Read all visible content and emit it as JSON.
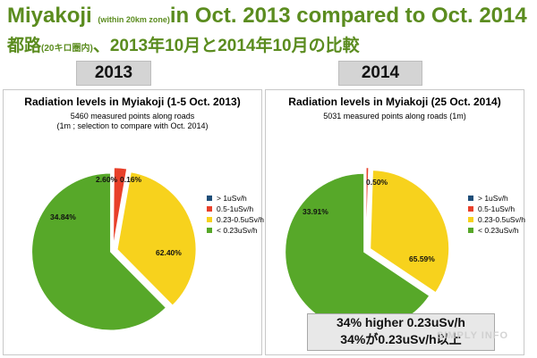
{
  "header": {
    "title_en_main": "Miyakoji",
    "title_en_small": "(within 20km zone)",
    "title_en_rest": "in Oct. 2013 compared to Oct. 2014",
    "title_jp_a": "都路",
    "title_jp_small": "(20キロ圏内)",
    "title_jp_b": "、2013年10月と2014年10月の比較"
  },
  "year_labels": [
    "2013",
    "2014"
  ],
  "colors": {
    "over1": "#1f4e79",
    "red": "#e8402a",
    "yellow": "#f7d21d",
    "green": "#57a829",
    "title_green": "#5b8c1f"
  },
  "chart_data": [
    {
      "type": "pie",
      "title": "Radiation levels in Myiakoji (1-5 Oct. 2013)",
      "subtitle_lines": [
        "5460 measured points along roads",
        "(1m ; selection to compare with Oct. 2014)"
      ],
      "categories": [
        "> 1uSv/h",
        "0.5-1uSv/h",
        "0.23-0.5uSv/h",
        "< 0.23uSv/h"
      ],
      "values": [
        0.16,
        2.6,
        34.84,
        62.4
      ],
      "labels": [
        "0.16%",
        "2.60%",
        "34.84%",
        "62.40%"
      ],
      "legend_position": "right"
    },
    {
      "type": "pie",
      "title": "Radiation levels in Myiakoji (25 Oct. 2014)",
      "subtitle_lines": [
        "5031 measured points along roads (1m)"
      ],
      "categories": [
        "> 1uSv/h",
        "0.5-1uSv/h",
        "0.23-0.5uSv/h",
        "< 0.23uSv/h"
      ],
      "values": [
        0.0,
        0.5,
        33.91,
        65.59
      ],
      "labels": [
        "",
        "0.50%",
        "33.91%",
        "65.59%"
      ],
      "legend_position": "right"
    }
  ],
  "note": {
    "line1": "34% higher 0.23uSv/h",
    "line2": "34%が0.23uSv/h以上"
  },
  "watermark": "SIMPLY INFO"
}
